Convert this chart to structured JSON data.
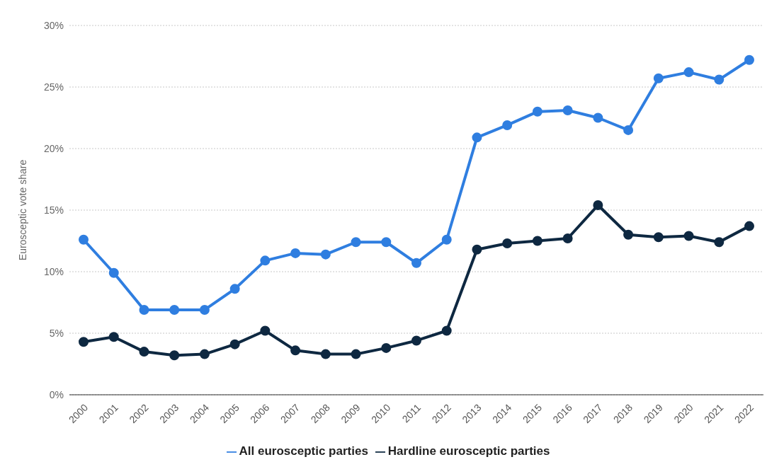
{
  "chart_data": {
    "type": "line",
    "ylabel": "Eurosceptic vote share",
    "categories": [
      "2000",
      "2001",
      "2002",
      "2003",
      "2004",
      "2005",
      "2006",
      "2007",
      "2008",
      "2009",
      "2010",
      "2011",
      "2012",
      "2013",
      "2014",
      "2015",
      "2016",
      "2017",
      "2018",
      "2019",
      "2020",
      "2021",
      "2022"
    ],
    "series": [
      {
        "name": "All eurosceptic parties",
        "color": "#2f7ee0",
        "values": [
          12.6,
          9.9,
          6.9,
          6.9,
          6.9,
          8.6,
          10.9,
          11.5,
          11.4,
          12.4,
          12.4,
          10.7,
          12.6,
          20.9,
          21.9,
          23.0,
          23.1,
          22.5,
          21.5,
          25.7,
          26.2,
          25.6,
          27.2
        ]
      },
      {
        "name": "Hardline eurosceptic parties",
        "color": "#0e2841",
        "values": [
          4.3,
          4.7,
          3.5,
          3.2,
          3.3,
          4.1,
          5.2,
          3.6,
          3.3,
          3.3,
          3.8,
          4.4,
          5.2,
          11.8,
          12.3,
          12.5,
          12.7,
          15.4,
          13.0,
          12.8,
          12.9,
          12.4,
          13.7
        ]
      }
    ],
    "ylim": [
      0,
      30
    ],
    "yticks": [
      {
        "value": 0,
        "label": "0%"
      },
      {
        "value": 5,
        "label": "5%"
      },
      {
        "value": 10,
        "label": "10%"
      },
      {
        "value": 15,
        "label": "15%"
      },
      {
        "value": 20,
        "label": "20%"
      },
      {
        "value": 25,
        "label": "25%"
      },
      {
        "value": 30,
        "label": "30%"
      }
    ],
    "grid": "y",
    "legend": "bottom",
    "marker": "circle",
    "line_style": "solid"
  }
}
